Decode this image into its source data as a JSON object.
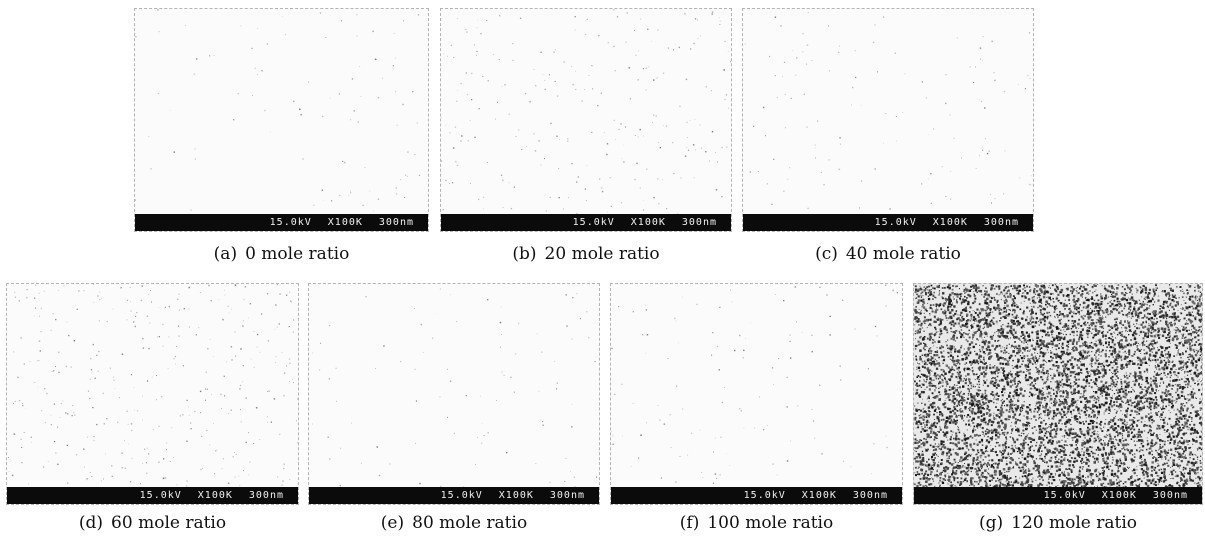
{
  "panels": [
    {
      "letter": "(a)",
      "text": "0 mole ratio",
      "voltage": "15.0kV",
      "magnification": "X100K",
      "scale": "300nm"
    },
    {
      "letter": "(b)",
      "text": "20 mole ratio",
      "voltage": "15.0kV",
      "magnification": "X100K",
      "scale": "300nm"
    },
    {
      "letter": "(c)",
      "text": "40 mole ratio",
      "voltage": "15.0kV",
      "magnification": "X100K",
      "scale": "300nm"
    },
    {
      "letter": "(d)",
      "text": "60 mole ratio",
      "voltage": "15.0kV",
      "magnification": "X100K",
      "scale": "300nm"
    },
    {
      "letter": "(e)",
      "text": "80 mole ratio",
      "voltage": "15.0kV",
      "magnification": "X100K",
      "scale": "300nm"
    },
    {
      "letter": "(f)",
      "text": "100 mole ratio",
      "voltage": "15.0kV",
      "magnification": "X100K",
      "scale": "300nm"
    },
    {
      "letter": "(g)",
      "text": "120 mole ratio",
      "voltage": "15.0kV",
      "magnification": "X100K",
      "scale": "300nm"
    }
  ]
}
